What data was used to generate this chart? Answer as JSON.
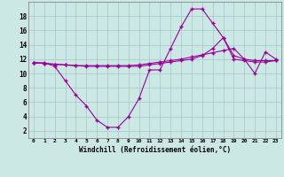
{
  "xlabel": "Windchill (Refroidissement éolien,°C)",
  "bg_color": "#cce8e4",
  "line_color": "#990099",
  "grid_color": "#aacccc",
  "xlim": [
    -0.5,
    23.5
  ],
  "ylim": [
    1,
    20
  ],
  "yticks": [
    2,
    4,
    6,
    8,
    10,
    12,
    14,
    16,
    18
  ],
  "xticks": [
    0,
    1,
    2,
    3,
    4,
    5,
    6,
    7,
    8,
    9,
    10,
    11,
    12,
    13,
    14,
    15,
    16,
    17,
    18,
    19,
    20,
    21,
    22,
    23
  ],
  "series1_x": [
    0,
    1,
    2,
    3,
    4,
    5,
    6,
    7,
    8,
    9,
    10,
    11,
    12,
    13,
    14,
    15,
    16,
    17,
    18,
    19,
    20,
    21,
    22,
    23
  ],
  "series1_y": [
    11.5,
    11.5,
    11.0,
    9.0,
    7.0,
    5.5,
    3.5,
    2.5,
    2.5,
    4.0,
    6.5,
    10.5,
    10.5,
    13.5,
    16.5,
    19.0,
    19.0,
    17.0,
    15.0,
    12.5,
    12.0,
    10.0,
    13.0,
    12.0
  ],
  "series2_x": [
    0,
    1,
    2,
    3,
    4,
    5,
    6,
    7,
    8,
    9,
    10,
    11,
    12,
    13,
    14,
    15,
    16,
    17,
    18,
    19,
    20,
    21,
    22,
    23
  ],
  "series2_y": [
    11.5,
    11.4,
    11.3,
    11.2,
    11.1,
    11.1,
    11.1,
    11.1,
    11.1,
    11.1,
    11.2,
    11.4,
    11.6,
    11.8,
    12.0,
    12.3,
    12.6,
    12.9,
    13.2,
    13.5,
    12.0,
    11.8,
    11.8,
    11.8
  ],
  "series3_x": [
    0,
    1,
    2,
    3,
    4,
    5,
    6,
    7,
    8,
    9,
    10,
    11,
    12,
    13,
    14,
    15,
    16,
    17,
    18,
    19,
    20,
    21,
    22,
    23
  ],
  "series3_y": [
    11.5,
    11.4,
    11.3,
    11.2,
    11.1,
    11.0,
    11.0,
    11.0,
    11.0,
    11.0,
    11.0,
    11.2,
    11.4,
    11.6,
    11.8,
    12.0,
    12.5,
    13.5,
    15.0,
    12.0,
    11.8,
    11.6,
    11.6,
    11.8
  ]
}
